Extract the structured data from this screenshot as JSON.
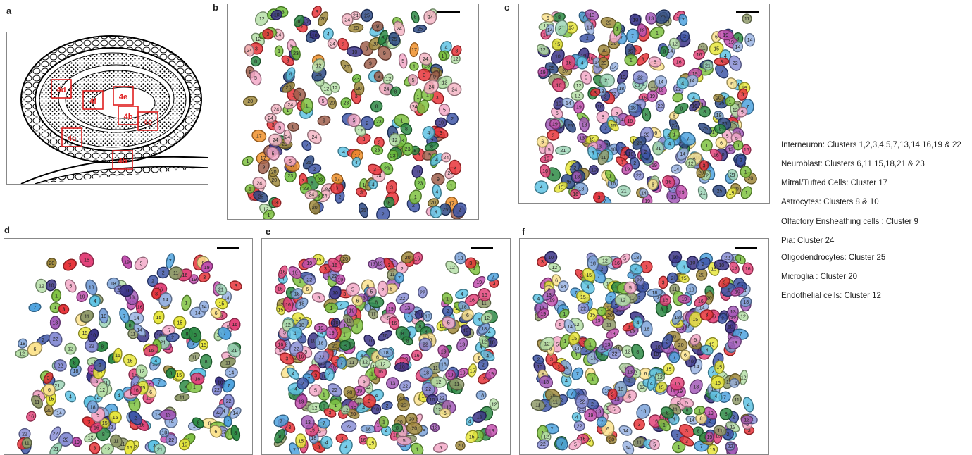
{
  "panels": [
    {
      "label": "a"
    },
    {
      "label": "b"
    },
    {
      "label": "c"
    },
    {
      "label": "d"
    },
    {
      "label": "e"
    },
    {
      "label": "f"
    }
  ],
  "overview_boxes": [
    {
      "label": "4d"
    },
    {
      "label": "4f"
    },
    {
      "label": "4e"
    },
    {
      "label": "4b"
    },
    {
      "label": "4c"
    },
    {
      "label": "4c"
    },
    {
      "label": "4b"
    }
  ],
  "legend": [
    "Interneuron: Clusters 1,2,3,4,5,7,13,14,16,19 & 22",
    "Neuroblast: Clusters 6,11,15,18,21 & 23",
    "Mitral/Tufted Cells:  Cluster 17",
    "Astrocytes:  Clusters 8 & 10",
    "Olfactory Ensheathing cells : Cluster 9",
    "Pia: Cluster 24",
    "Oligodendrocytes: Cluster 25",
    "Microglia : Cluster 20",
    "Endothelial cells: Cluster 12"
  ],
  "cluster_colors": {
    "1": "#7fc241",
    "2": "#3f57a8",
    "3": "#e8343a",
    "4": "#5fc3e4",
    "5": "#f3a9c8",
    "6": "#fbe38e",
    "7": "#4fa3df",
    "8": "#2e8b45",
    "9": "#a0604e",
    "10": "#3b3487",
    "11": "#8f9a6a",
    "12": "#b6dfa8",
    "13": "#a35bb8",
    "14": "#9ab4e3",
    "15": "#e7e63c",
    "16": "#e3447a",
    "17": "#f0902a",
    "18": "#7da3d9",
    "19": "#c24fae",
    "20": "#a08a3c",
    "21": "#9fd6b8",
    "22": "#8a8fd6",
    "23": "#6fbf3a",
    "24": "#f4b6c6",
    "25": "#2e4a86"
  }
}
